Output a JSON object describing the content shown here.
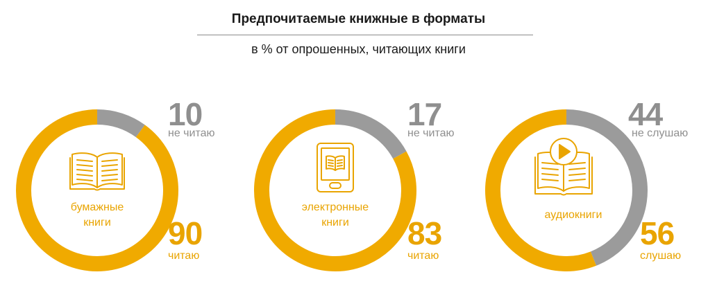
{
  "title": "Предпочитаемые книжные в форматы",
  "subtitle": "в % от опрошенных, читающих книги",
  "colors": {
    "primary": "#f0aa00",
    "secondary": "#9b9b9b",
    "primary_text": "#e9a400",
    "secondary_text": "#8f8f8f"
  },
  "chart_data": [
    {
      "type": "pie",
      "category": "бумажные книги",
      "label_lines": [
        "бумажные",
        "книги"
      ],
      "icon": "open-book-icon",
      "slices": [
        {
          "value": 90,
          "label": "читаю"
        },
        {
          "value": 10,
          "label": "не читаю"
        }
      ]
    },
    {
      "type": "pie",
      "category": "электронные книги",
      "label_lines": [
        "электронные",
        "книги"
      ],
      "icon": "ebook-reader-icon",
      "slices": [
        {
          "value": 83,
          "label": "читаю"
        },
        {
          "value": 17,
          "label": "не читаю"
        }
      ]
    },
    {
      "type": "pie",
      "category": "аудиокниги",
      "label_lines": [
        "аудиокниги"
      ],
      "icon": "audiobook-icon",
      "slices": [
        {
          "value": 56,
          "label": "слушаю"
        },
        {
          "value": 44,
          "label": "не слушаю"
        }
      ]
    }
  ]
}
